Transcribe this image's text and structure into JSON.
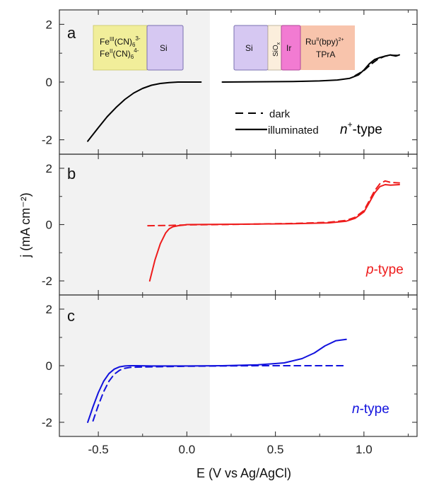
{
  "chart_data": {
    "type": "line",
    "xlabel": "E (V vs Ag/AgCl)",
    "ylabel": "j (mA cm⁻²)",
    "xlim": [
      -0.72,
      1.3
    ],
    "xticks": [
      "-0.5",
      "0.0",
      "0.5",
      "1.0"
    ],
    "yticks": [
      "-2",
      "0",
      "2"
    ],
    "shaded_region": [
      -0.72,
      0.13
    ],
    "legend": {
      "placement": "right",
      "dark": "dark",
      "illuminated": "illuminated"
    },
    "panels": [
      {
        "letter": "a",
        "label_italic": "n",
        "label_sup": "+",
        "label_rest": "-type",
        "color": "#000000",
        "ylim": [
          -2.5,
          2.5
        ],
        "series": [
          {
            "style": "solid",
            "x": [
              -0.56,
              -0.5,
              -0.45,
              -0.4,
              -0.35,
              -0.3,
              -0.25,
              -0.2,
              -0.15,
              -0.1,
              -0.05,
              0.0,
              0.05,
              0.08
            ],
            "y": [
              -2.05,
              -1.58,
              -1.2,
              -0.88,
              -0.6,
              -0.38,
              -0.22,
              -0.11,
              -0.05,
              -0.02,
              0.0,
              0.0,
              0.0,
              0.0
            ]
          },
          {
            "style": "solid",
            "x": [
              0.2,
              0.4,
              0.6,
              0.75,
              0.85,
              0.92,
              0.97,
              1.0,
              1.03,
              1.06,
              1.09,
              1.12,
              1.15,
              1.18,
              1.2
            ],
            "y": [
              0.0,
              0.01,
              0.02,
              0.04,
              0.07,
              0.13,
              0.25,
              0.42,
              0.63,
              0.78,
              0.85,
              0.9,
              0.94,
              0.9,
              0.94
            ]
          },
          {
            "style": "dashed",
            "x": [
              0.95,
              1.0,
              1.04,
              1.08,
              1.12,
              1.15,
              1.2
            ],
            "y": [
              0.22,
              0.4,
              0.62,
              0.8,
              0.9,
              0.93,
              0.92
            ]
          }
        ]
      },
      {
        "letter": "b",
        "label_italic": "p",
        "label_sup": "",
        "label_rest": "-type",
        "color": "#ee1c1c",
        "ylim": [
          -2.5,
          2.5
        ],
        "series": [
          {
            "style": "dashed",
            "x": [
              -0.22,
              -0.1,
              0.0,
              0.2,
              0.4,
              0.6,
              0.8,
              0.9,
              0.95,
              1.0,
              1.03,
              1.06,
              1.09,
              1.12,
              1.15,
              1.2
            ],
            "y": [
              -0.04,
              -0.03,
              -0.01,
              0.0,
              0.02,
              0.04,
              0.08,
              0.15,
              0.26,
              0.5,
              0.85,
              1.2,
              1.45,
              1.55,
              1.5,
              1.48
            ]
          },
          {
            "style": "solid",
            "x": [
              -0.21,
              -0.18,
              -0.15,
              -0.12,
              -0.1,
              -0.08,
              -0.05,
              -0.02,
              0.0,
              0.2,
              0.4,
              0.6,
              0.8,
              0.9,
              0.95,
              1.0,
              1.03,
              1.06,
              1.09,
              1.12,
              1.15,
              1.2
            ],
            "y": [
              -2.0,
              -1.25,
              -0.68,
              -0.3,
              -0.15,
              -0.08,
              -0.04,
              -0.02,
              0.0,
              0.01,
              0.02,
              0.03,
              0.06,
              0.12,
              0.22,
              0.45,
              0.78,
              1.12,
              1.35,
              1.42,
              1.4,
              1.42
            ]
          }
        ]
      },
      {
        "letter": "c",
        "label_italic": "n",
        "label_sup": "",
        "label_rest": "-type",
        "color": "#1212dd",
        "ylim": [
          -2.5,
          2.5
        ],
        "series": [
          {
            "style": "solid",
            "x": [
              -0.56,
              -0.53,
              -0.5,
              -0.47,
              -0.44,
              -0.41,
              -0.38,
              -0.35,
              -0.32,
              -0.28,
              -0.2,
              0.0,
              0.2,
              0.4,
              0.55,
              0.65,
              0.72,
              0.78,
              0.84,
              0.9
            ],
            "y": [
              -2.0,
              -1.45,
              -0.95,
              -0.55,
              -0.28,
              -0.12,
              -0.04,
              -0.01,
              0.0,
              0.0,
              -0.01,
              -0.01,
              0.0,
              0.03,
              0.1,
              0.25,
              0.45,
              0.7,
              0.88,
              0.93
            ]
          },
          {
            "style": "dashed",
            "x": [
              -0.53,
              -0.5,
              -0.47,
              -0.44,
              -0.41,
              -0.38,
              -0.35,
              -0.32,
              -0.28,
              -0.2,
              0.0,
              0.2,
              0.4,
              0.6,
              0.8,
              0.9
            ],
            "y": [
              -1.95,
              -1.4,
              -0.92,
              -0.55,
              -0.3,
              -0.16,
              -0.09,
              -0.06,
              -0.05,
              -0.04,
              -0.02,
              -0.01,
              0.0,
              0.0,
              0.0,
              0.0
            ]
          }
        ]
      }
    ],
    "insets": {
      "left": {
        "electrolyte_line1_pre": "Fe",
        "electrolyte_line1_sup": "III",
        "electrolyte_line1_mid": "(CN)",
        "electrolyte_line1_sub": "6",
        "electrolyte_line1_sup2": "3-",
        "electrolyte_line2_pre": "Fe",
        "electrolyte_line2_sup": "II",
        "electrolyte_line2_mid": "(CN)",
        "electrolyte_line2_sub": "6",
        "electrolyte_line2_sup2": "4-",
        "electrode": "Si",
        "colors": {
          "electrolyte": "#f1ee9a",
          "electrode": "#d6c8f2"
        }
      },
      "right": {
        "electrode": "Si",
        "oxide_pre": "SiO",
        "oxide_sub": "x",
        "catalyst": "Ir",
        "electrolyte_line1_pre": "Ru",
        "electrolyte_line1_sup": "II",
        "electrolyte_line1_mid": "(bpy)",
        "electrolyte_line1_sup2": "2+",
        "electrolyte_line2": "TPrA",
        "colors": {
          "electrode": "#d6c8f2",
          "oxide": "#fbeedc",
          "catalyst": "#f27bd2",
          "electrolyte": "#f8c4ac"
        }
      }
    }
  }
}
